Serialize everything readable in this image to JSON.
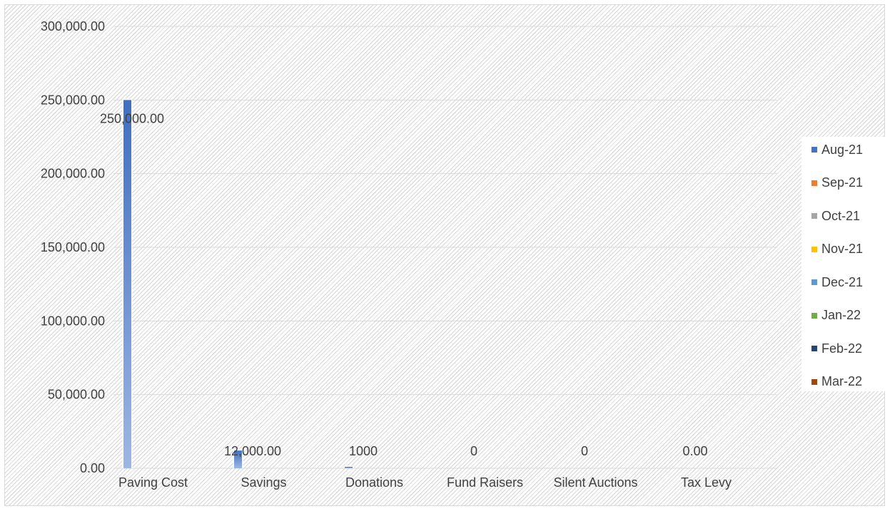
{
  "chart_data": {
    "type": "bar",
    "categories": [
      "Paving Cost",
      "Savings",
      "Donations",
      "Fund Raisers",
      "Silent Auctions",
      "Tax Levy"
    ],
    "series": [
      {
        "name": "Aug-21",
        "color": "#4472c4",
        "values": [
          250000,
          12000,
          1000,
          0,
          0,
          0
        ]
      },
      {
        "name": "Sep-21",
        "color": "#ed7d31",
        "values": [
          0,
          0,
          0,
          0,
          0,
          0
        ]
      },
      {
        "name": "Oct-21",
        "color": "#a5a5a5",
        "values": [
          0,
          0,
          0,
          0,
          0,
          0
        ]
      },
      {
        "name": "Nov-21",
        "color": "#ffc000",
        "values": [
          0,
          0,
          0,
          0,
          0,
          0
        ]
      },
      {
        "name": "Dec-21",
        "color": "#5b9bd5",
        "values": [
          0,
          0,
          0,
          0,
          0,
          0
        ]
      },
      {
        "name": "Jan-22",
        "color": "#70ad47",
        "values": [
          0,
          0,
          0,
          0,
          0,
          0
        ]
      },
      {
        "name": "Feb-22",
        "color": "#264478",
        "values": [
          0,
          0,
          0,
          0,
          0,
          0
        ]
      },
      {
        "name": "Mar-22",
        "color": "#9e480e",
        "values": [
          0,
          0,
          0,
          0,
          0,
          0
        ]
      }
    ],
    "data_labels": [
      "250,000.00",
      "12,000.00",
      "1000",
      "0",
      "0",
      "0.00"
    ],
    "y_ticks": [
      "0.00",
      "50,000.00",
      "100,000.00",
      "150,000.00",
      "200,000.00",
      "250,000.00",
      "300,000.00"
    ],
    "ylim": [
      0,
      300000
    ],
    "y_step": 50000,
    "title": "",
    "xlabel": "",
    "ylabel": "",
    "grid": true,
    "legend_position": "right"
  }
}
